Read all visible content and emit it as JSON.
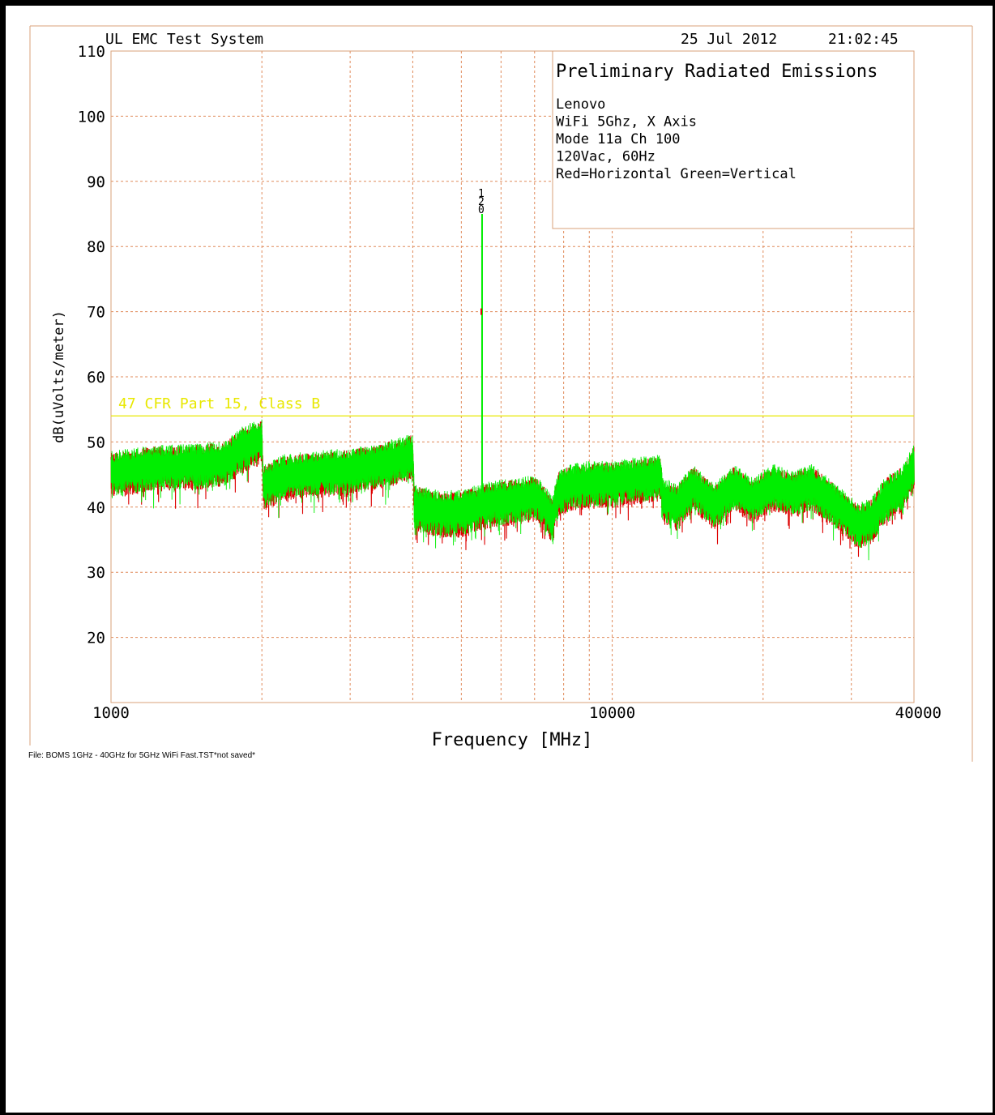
{
  "header": {
    "system": "UL EMC Test System",
    "date": "25 Jul 2012",
    "time": "21:02:45"
  },
  "info_box": {
    "title": "Preliminary Radiated Emissions",
    "lines": [
      "Lenovo",
      "WiFi 5Ghz, X Axis",
      "Mode 11a Ch 100",
      "120Vac, 60Hz",
      "Red=Horizontal Green=Vertical"
    ]
  },
  "file_label": "File: BOMS 1GHz - 40GHz for 5GHz WiFi Fast.TST*not saved*",
  "marker_labels": [
    "1",
    "2",
    "0"
  ],
  "colors": {
    "frame": "#d9a27a",
    "grid": "#e08a5a",
    "limit": "#e8e800",
    "horizontal": "#dd0000",
    "vertical": "#00ee00"
  },
  "chart_data": {
    "type": "line",
    "xlabel": "Frequency [MHz]",
    "ylabel": "dB(uVolts/meter)",
    "xscale": "log",
    "xlim": [
      1000,
      40000
    ],
    "ylim": [
      10,
      110
    ],
    "x_tick_labels": [
      {
        "value": 1000,
        "label": "1000"
      },
      {
        "value": 10000,
        "label": "10000"
      },
      {
        "value": 40000,
        "label": "40000"
      }
    ],
    "y_ticks": [
      20,
      30,
      40,
      50,
      60,
      70,
      80,
      90,
      100,
      110
    ],
    "x_gridlines": [
      2000,
      3000,
      4000,
      5000,
      6000,
      7000,
      8000,
      9000,
      10000,
      20000,
      30000,
      40000
    ],
    "grid": true,
    "limit_line": {
      "label": "47 CFR Part 15, Class B",
      "value": 54
    },
    "series": [
      {
        "name": "Horizontal",
        "color": "#dd0000",
        "points": [
          [
            1000,
            45
          ],
          [
            1200,
            46
          ],
          [
            1500,
            46.3
          ],
          [
            1700,
            46.8
          ],
          [
            1800,
            48.5
          ],
          [
            1900,
            49.5
          ],
          [
            2000,
            50
          ],
          [
            2010,
            43
          ],
          [
            2200,
            44.5
          ],
          [
            2500,
            45
          ],
          [
            3000,
            45.5
          ],
          [
            3500,
            46.5
          ],
          [
            4000,
            47.8
          ],
          [
            4030,
            40
          ],
          [
            4500,
            39
          ],
          [
            5000,
            39
          ],
          [
            5300,
            39.8
          ],
          [
            5800,
            40.5
          ],
          [
            6500,
            41
          ],
          [
            7000,
            41.5
          ],
          [
            7300,
            40
          ],
          [
            7600,
            38
          ],
          [
            7800,
            42
          ],
          [
            8200,
            43
          ],
          [
            9000,
            43.5
          ],
          [
            10000,
            43.5
          ],
          [
            11000,
            44
          ],
          [
            12500,
            44.5
          ],
          [
            12600,
            41
          ],
          [
            13500,
            40
          ],
          [
            14500,
            43
          ],
          [
            16000,
            40
          ],
          [
            17500,
            43
          ],
          [
            19000,
            41
          ],
          [
            21000,
            43
          ],
          [
            23000,
            42
          ],
          [
            25000,
            43
          ],
          [
            27000,
            41
          ],
          [
            29000,
            39
          ],
          [
            31000,
            37
          ],
          [
            33000,
            38
          ],
          [
            35000,
            41
          ],
          [
            38000,
            43
          ],
          [
            40000,
            46
          ]
        ]
      },
      {
        "name": "Vertical",
        "color": "#00ee00",
        "points": [
          [
            1000,
            45.3
          ],
          [
            1200,
            46.2
          ],
          [
            1500,
            46.5
          ],
          [
            1700,
            47
          ],
          [
            1800,
            48.8
          ],
          [
            1900,
            49.8
          ],
          [
            2000,
            50.3
          ],
          [
            2010,
            43.3
          ],
          [
            2200,
            44.8
          ],
          [
            2500,
            45.3
          ],
          [
            3000,
            45.8
          ],
          [
            3500,
            46.8
          ],
          [
            4000,
            48
          ],
          [
            4030,
            40.2
          ],
          [
            4500,
            39.3
          ],
          [
            5000,
            39.3
          ],
          [
            5300,
            40
          ],
          [
            5800,
            40.8
          ],
          [
            6500,
            41.2
          ],
          [
            7000,
            41.8
          ],
          [
            7300,
            40.3
          ],
          [
            7600,
            38.3
          ],
          [
            7800,
            42.3
          ],
          [
            8200,
            43.3
          ],
          [
            9000,
            43.8
          ],
          [
            10000,
            43.8
          ],
          [
            11000,
            44.3
          ],
          [
            12500,
            44.8
          ],
          [
            12600,
            41.3
          ],
          [
            13500,
            40.3
          ],
          [
            14500,
            43.3
          ],
          [
            16000,
            40.3
          ],
          [
            17500,
            43.3
          ],
          [
            19000,
            41.3
          ],
          [
            21000,
            43.3
          ],
          [
            23000,
            42.3
          ],
          [
            25000,
            43.3
          ],
          [
            27000,
            41.3
          ],
          [
            29000,
            39.3
          ],
          [
            31000,
            37.3
          ],
          [
            33000,
            38.3
          ],
          [
            35000,
            41.3
          ],
          [
            38000,
            43.3
          ],
          [
            40000,
            46.3
          ]
        ]
      }
    ],
    "spike": {
      "x": 5500,
      "vertical_peak": 85,
      "horizontal_peak": 70,
      "base": 40
    }
  }
}
